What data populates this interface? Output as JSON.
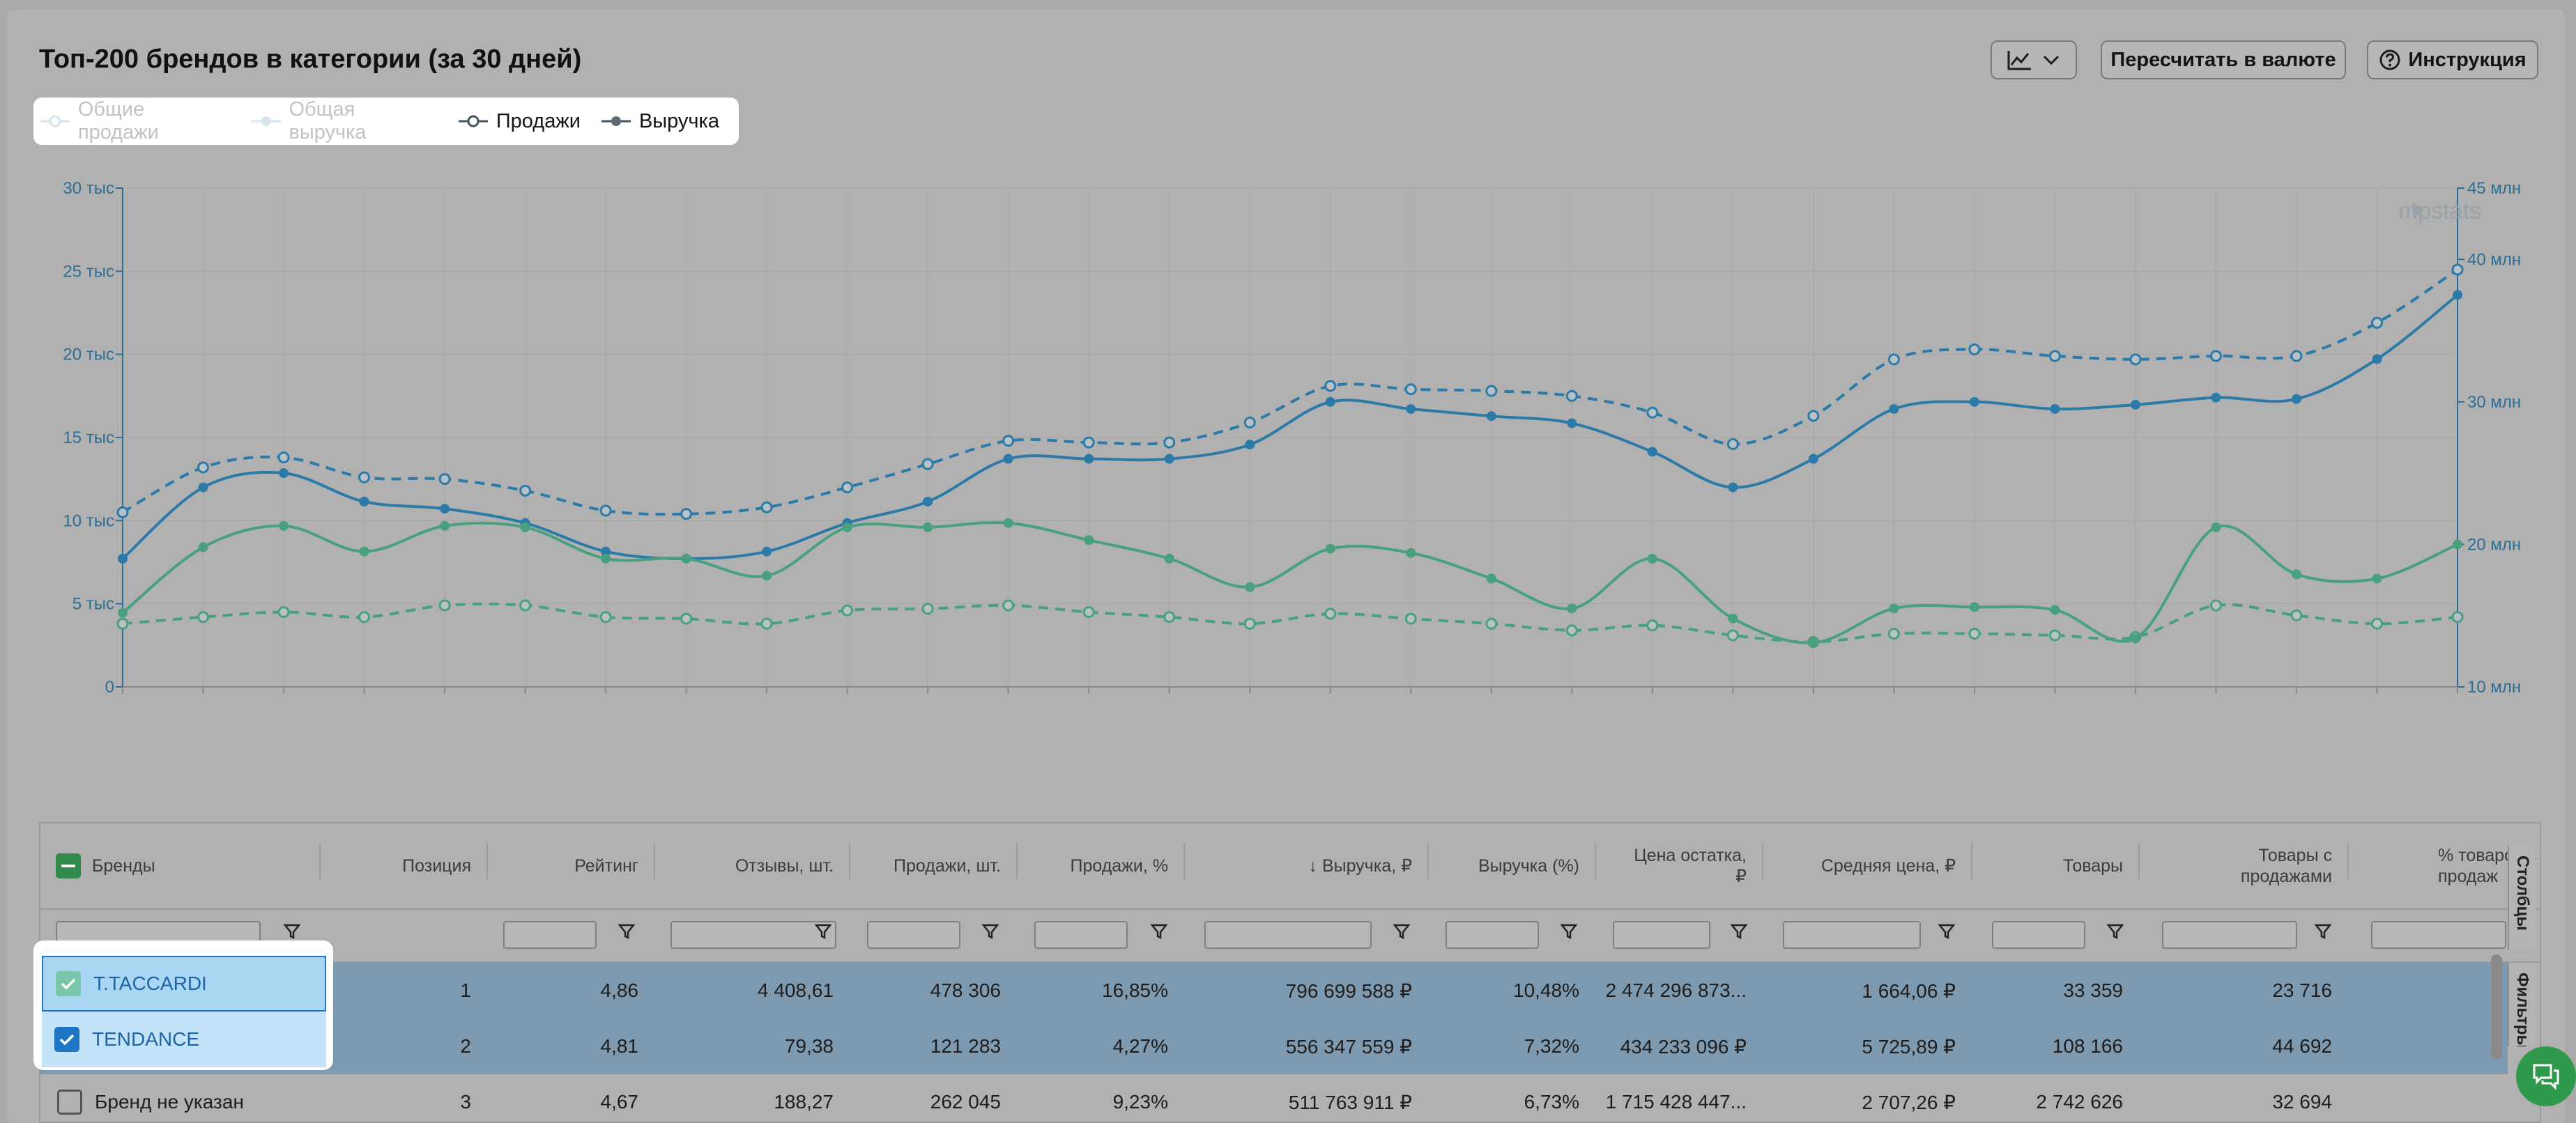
{
  "title": "Топ-200 брендов в категории (за 30 дней)",
  "toolbar": {
    "chart_type_icon": "line-chart-icon",
    "recalc_label": "Пересчитать в валюте",
    "help_label": "Инструкция"
  },
  "legend": [
    {
      "label": "Общие продажи",
      "active": false
    },
    {
      "label": "Общая выручка",
      "active": false
    },
    {
      "label": "Продажи",
      "active": true
    },
    {
      "label": "Выручка",
      "active": true
    }
  ],
  "watermark": "mpstats",
  "colors": {
    "blue": "#2b7aa8",
    "green": "#48a07e",
    "selected_row": "#7e9ab0",
    "accent": "#1f76c7"
  },
  "chart_data": {
    "type": "line",
    "x": [
      1,
      2,
      3,
      4,
      5,
      6,
      7,
      8,
      9,
      10,
      11,
      12,
      13,
      14,
      15,
      16,
      17,
      18,
      19,
      20,
      21,
      22,
      23,
      24,
      25,
      26,
      27,
      28,
      29,
      30
    ],
    "y_left": {
      "ticks": [
        "0",
        "5 тыс",
        "10 тыс",
        "15 тыс",
        "20 тыс",
        "25 тыс",
        "30 тыс"
      ],
      "range": [
        0,
        30000
      ]
    },
    "y_right": {
      "ticks": [
        "10 млн",
        "20 млн",
        "30 млн",
        "40 млн",
        "45 млн"
      ],
      "range": [
        10000000,
        45000000
      ]
    },
    "grid": true,
    "series": [
      {
        "name": "T.TACCARDI · Продажи",
        "axis": "left",
        "dash": true,
        "color": "#2b7aa8",
        "values": [
          10500,
          13200,
          13800,
          12600,
          12500,
          11800,
          10600,
          10400,
          10800,
          12000,
          13400,
          14800,
          14700,
          14700,
          15900,
          18100,
          17900,
          17800,
          17500,
          16500,
          14600,
          16300,
          19700,
          20300,
          19900,
          19700,
          19900,
          19900,
          21900,
          25100
        ]
      },
      {
        "name": "T.TACCARDI · Выручка",
        "axis": "right",
        "dash": false,
        "color": "#2b7aa8",
        "values": [
          19000,
          24000,
          25000,
          23000,
          22500,
          21500,
          19500,
          19000,
          19500,
          21500,
          23000,
          26000,
          26000,
          26000,
          27000,
          30000,
          29500,
          29000,
          28500,
          26500,
          24000,
          26000,
          29500,
          30000,
          29500,
          29800,
          30300,
          30200,
          33000,
          37500
        ],
        "right_values_million": [
          19.0,
          24.0,
          25.0,
          23.0,
          22.5,
          21.5,
          19.5,
          19.0,
          19.5,
          21.5,
          23.0,
          26.0,
          26.0,
          26.0,
          27.0,
          30.0,
          29.5,
          29.0,
          28.5,
          26.5,
          24.0,
          26.0,
          29.5,
          30.0,
          29.5,
          29.8,
          30.3,
          30.2,
          33.0,
          37.5
        ]
      },
      {
        "name": "TENDANCE · Продажи",
        "axis": "left",
        "dash": true,
        "color": "#48a07e",
        "values": [
          3800,
          4200,
          4500,
          4200,
          4900,
          4900,
          4200,
          4100,
          3800,
          4600,
          4700,
          4900,
          4500,
          4200,
          3800,
          4400,
          4100,
          3800,
          3400,
          3700,
          3100,
          2700,
          3200,
          3200,
          3100,
          3000,
          4900,
          4300,
          3800,
          4200
        ]
      },
      {
        "name": "TENDANCE · Выручка",
        "axis": "right",
        "dash": false,
        "color": "#48a07e",
        "values": [
          15200,
          19800,
          21300,
          19500,
          21300,
          21200,
          19000,
          19000,
          17800,
          21200,
          21200,
          21500,
          20300,
          19000,
          17000,
          19700,
          19400,
          17600,
          15500,
          19000,
          14800,
          13100,
          15500,
          15600,
          15400,
          13400,
          21200,
          17900,
          17600,
          20000
        ],
        "right_values_million": [
          15.2,
          19.8,
          21.3,
          19.5,
          21.3,
          21.2,
          19.0,
          19.0,
          17.8,
          21.2,
          21.2,
          21.5,
          20.3,
          19.0,
          17.0,
          19.7,
          19.4,
          17.6,
          15.5,
          19.0,
          14.8,
          13.1,
          15.5,
          15.6,
          15.4,
          13.4,
          21.2,
          17.9,
          17.6,
          20.0
        ]
      }
    ]
  },
  "table": {
    "columns": [
      {
        "label": "Бренды"
      },
      {
        "label": "Позиция"
      },
      {
        "label": "Рейтинг"
      },
      {
        "label": "Отзывы, шт."
      },
      {
        "label": "Продажи, шт."
      },
      {
        "label": "Продажи, %"
      },
      {
        "label": "↓ Выручка, ₽"
      },
      {
        "label": "Выручка (%)"
      },
      {
        "label": "Цена остатка, ₽"
      },
      {
        "label": "Средняя цена, ₽"
      },
      {
        "label": "Товары"
      },
      {
        "label": "Товары с продажами"
      },
      {
        "label": "% товаров с продаж"
      }
    ],
    "rows": [
      {
        "brand": "T.TACCARDI",
        "checked": true,
        "cells": [
          "1",
          "4,86",
          "4 408,61",
          "478 306",
          "16,85%",
          "796 699 588 ₽",
          "10,48%",
          "2 474 296 873...",
          "1 664,06 ₽",
          "33 359",
          "23 716"
        ]
      },
      {
        "brand": "TENDANCE",
        "checked": true,
        "cells": [
          "2",
          "4,81",
          "79,38",
          "121 283",
          "4,27%",
          "556 347 559 ₽",
          "7,32%",
          "434 233 096 ₽",
          "5 725,89 ₽",
          "108 166",
          "44 692"
        ]
      },
      {
        "brand": "Бренд не указан",
        "checked": false,
        "cells": [
          "3",
          "4,67",
          "188,27",
          "262 045",
          "9,23%",
          "511 763 911 ₽",
          "6,73%",
          "1 715 428 447...",
          "2 707,26 ₽",
          "2 742 626",
          "32 694"
        ]
      }
    ],
    "side_tabs": [
      "Столбцы",
      "Фильтры"
    ]
  }
}
